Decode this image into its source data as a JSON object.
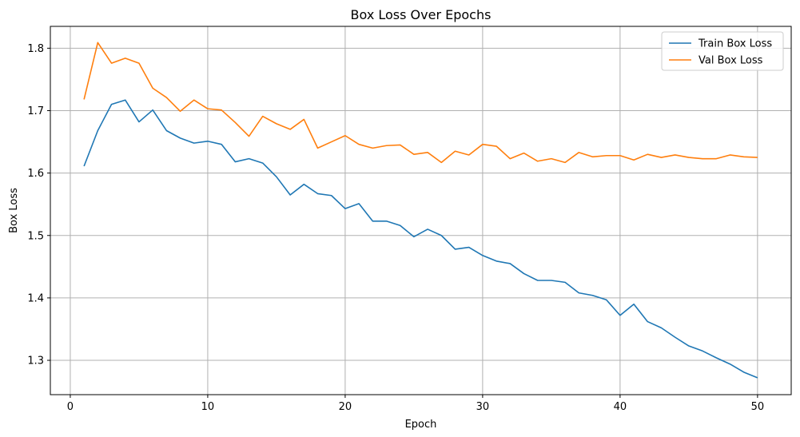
{
  "chart_data": {
    "type": "line",
    "title": "Box Loss Over Epochs",
    "xlabel": "Epoch",
    "ylabel": "Box Loss",
    "xlim": [
      -1.45,
      52.45
    ],
    "ylim": [
      1.245,
      1.835
    ],
    "xticks": [
      0,
      10,
      20,
      30,
      40,
      50
    ],
    "yticks": [
      1.3,
      1.4,
      1.5,
      1.6,
      1.7,
      1.8
    ],
    "xtick_labels": [
      "0",
      "10",
      "20",
      "30",
      "40",
      "50"
    ],
    "ytick_labels": [
      "1.3",
      "1.4",
      "1.5",
      "1.6",
      "1.7",
      "1.8"
    ],
    "grid": true,
    "legend_position": "top-right",
    "x": [
      1,
      2,
      3,
      4,
      5,
      6,
      7,
      8,
      9,
      10,
      11,
      12,
      13,
      14,
      15,
      16,
      17,
      18,
      19,
      20,
      21,
      22,
      23,
      24,
      25,
      26,
      27,
      28,
      29,
      30,
      31,
      32,
      33,
      34,
      35,
      36,
      37,
      38,
      39,
      40,
      41,
      42,
      43,
      44,
      45,
      46,
      47,
      48,
      49,
      50
    ],
    "series": [
      {
        "name": "Train Box Loss",
        "color": "#1f77b4",
        "values": [
          1.611,
          1.668,
          1.71,
          1.717,
          1.682,
          1.701,
          1.668,
          1.656,
          1.648,
          1.651,
          1.646,
          1.618,
          1.623,
          1.616,
          1.594,
          1.565,
          1.582,
          1.567,
          1.564,
          1.543,
          1.551,
          1.523,
          1.523,
          1.516,
          1.498,
          1.51,
          1.5,
          1.478,
          1.481,
          1.468,
          1.459,
          1.455,
          1.439,
          1.428,
          1.428,
          1.425,
          1.408,
          1.404,
          1.397,
          1.372,
          1.39,
          1.362,
          1.352,
          1.337,
          1.323,
          1.315,
          1.304,
          1.294,
          1.281,
          1.272
        ]
      },
      {
        "name": "Val Box Loss",
        "color": "#ff7f0e",
        "values": [
          1.718,
          1.809,
          1.776,
          1.784,
          1.776,
          1.736,
          1.721,
          1.699,
          1.717,
          1.703,
          1.701,
          1.681,
          1.659,
          1.691,
          1.679,
          1.67,
          1.686,
          1.64,
          1.65,
          1.66,
          1.646,
          1.64,
          1.644,
          1.645,
          1.63,
          1.633,
          1.617,
          1.635,
          1.629,
          1.646,
          1.643,
          1.623,
          1.632,
          1.619,
          1.623,
          1.617,
          1.633,
          1.626,
          1.628,
          1.628,
          1.621,
          1.63,
          1.625,
          1.629,
          1.625,
          1.623,
          1.623,
          1.629,
          1.626,
          1.625
        ]
      }
    ]
  }
}
